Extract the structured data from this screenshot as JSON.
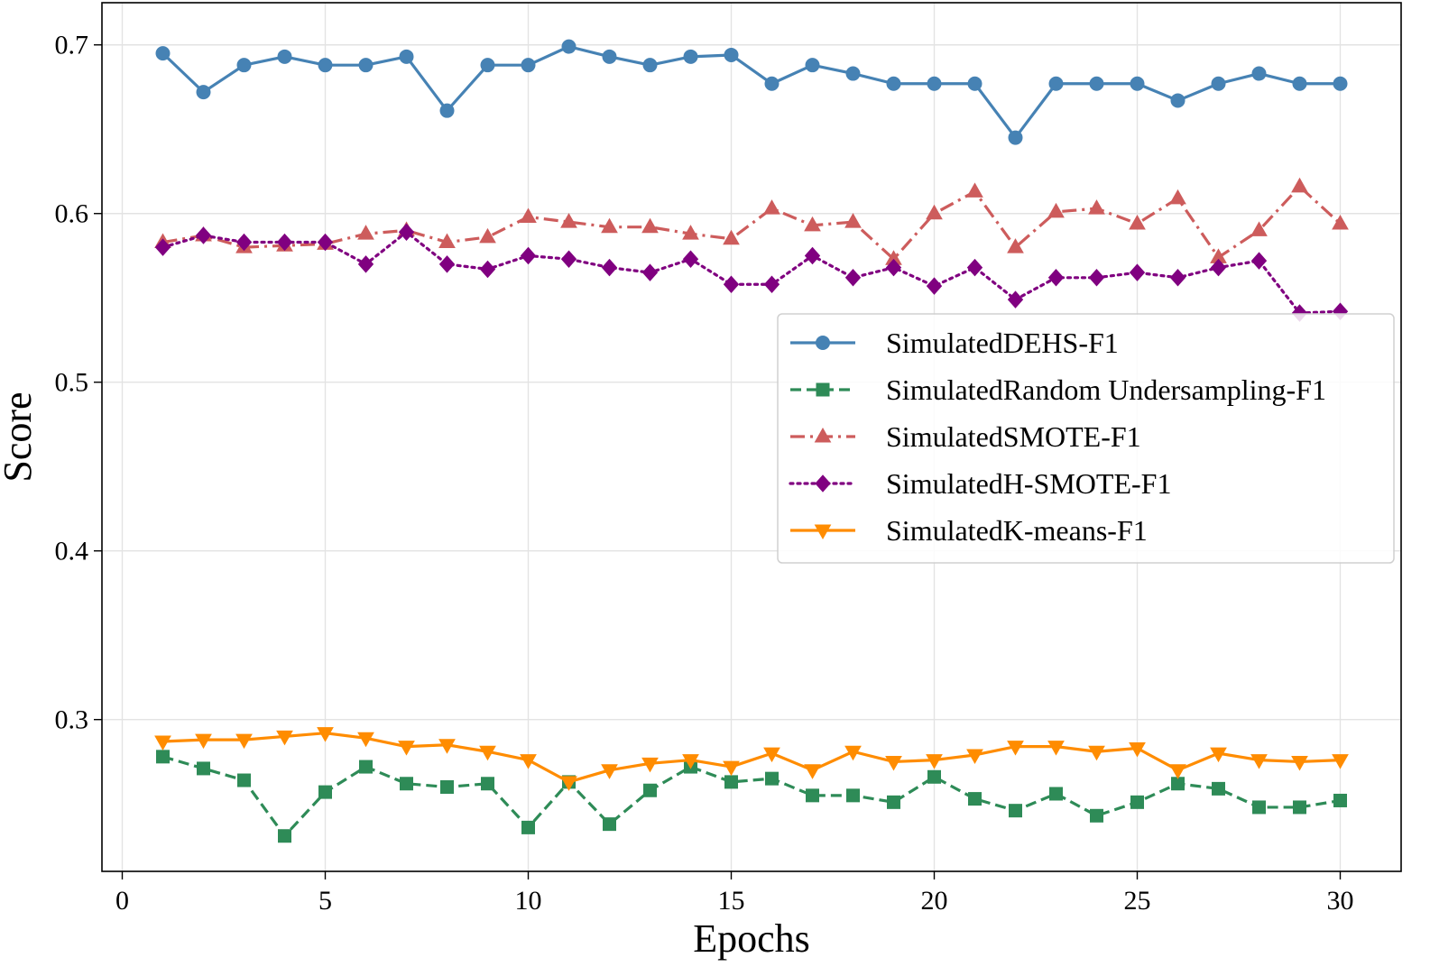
{
  "chart_data": {
    "type": "line",
    "title": "",
    "xlabel": "Epochs",
    "ylabel": "Score",
    "xlim": [
      -0.5,
      31.5
    ],
    "ylim": [
      0.21,
      0.725
    ],
    "xticks": [
      0,
      5,
      10,
      15,
      20,
      25,
      30
    ],
    "yticks": [
      0.3,
      0.4,
      0.5,
      0.6,
      0.7
    ],
    "ytick_labels": [
      "0.3",
      "0.4",
      "0.5",
      "0.6",
      "0.7"
    ],
    "grid": true,
    "legend_position": "center-right",
    "x": [
      1,
      2,
      3,
      4,
      5,
      6,
      7,
      8,
      9,
      10,
      11,
      12,
      13,
      14,
      15,
      16,
      17,
      18,
      19,
      20,
      21,
      22,
      23,
      24,
      25,
      26,
      27,
      28,
      29,
      30
    ],
    "series": [
      {
        "name": "SimulatedDEHS-F1",
        "color": "#4682b4",
        "dash": "solid",
        "marker": "circle",
        "values": [
          0.695,
          0.672,
          0.688,
          0.693,
          0.688,
          0.688,
          0.693,
          0.661,
          0.688,
          0.688,
          0.699,
          0.693,
          0.688,
          0.693,
          0.694,
          0.677,
          0.688,
          0.683,
          0.677,
          0.677,
          0.677,
          0.645,
          0.677,
          0.677,
          0.677,
          0.667,
          0.677,
          0.683,
          0.677,
          0.677
        ]
      },
      {
        "name": "SimulatedRandom Undersampling-F1",
        "color": "#2e8b57",
        "dash": "dashed",
        "marker": "square",
        "values": [
          0.278,
          0.271,
          0.264,
          0.231,
          0.257,
          0.272,
          0.262,
          0.26,
          0.262,
          0.236,
          0.263,
          0.238,
          0.258,
          0.272,
          0.263,
          0.265,
          0.255,
          0.255,
          0.251,
          0.266,
          0.253,
          0.246,
          0.256,
          0.243,
          0.251,
          0.262,
          0.259,
          0.248,
          0.248,
          0.252
        ]
      },
      {
        "name": "SimulatedSMOTE-F1",
        "color": "#cd5c5c",
        "dash": "dashdot",
        "marker": "triangle-up",
        "values": [
          0.583,
          0.587,
          0.58,
          0.581,
          0.582,
          0.588,
          0.59,
          0.583,
          0.586,
          0.598,
          0.595,
          0.592,
          0.592,
          0.588,
          0.585,
          0.603,
          0.593,
          0.595,
          0.573,
          0.6,
          0.613,
          0.58,
          0.601,
          0.603,
          0.594,
          0.609,
          0.574,
          0.59,
          0.616,
          0.594
        ]
      },
      {
        "name": "SimulatedH-SMOTE-F1",
        "color": "#800080",
        "dash": "dotted",
        "marker": "diamond",
        "values": [
          0.58,
          0.587,
          0.583,
          0.583,
          0.583,
          0.57,
          0.589,
          0.57,
          0.567,
          0.575,
          0.573,
          0.568,
          0.565,
          0.573,
          0.558,
          0.558,
          0.575,
          0.562,
          0.568,
          0.557,
          0.568,
          0.549,
          0.562,
          0.562,
          0.565,
          0.562,
          0.568,
          0.572,
          0.541,
          0.542
        ]
      },
      {
        "name": "SimulatedK-means-F1",
        "color": "#ff8c00",
        "dash": "solid",
        "marker": "triangle-down",
        "values": [
          0.287,
          0.288,
          0.288,
          0.29,
          0.292,
          0.289,
          0.284,
          0.285,
          0.281,
          0.276,
          0.263,
          0.27,
          0.274,
          0.276,
          0.272,
          0.28,
          0.27,
          0.281,
          0.275,
          0.276,
          0.279,
          0.284,
          0.284,
          0.281,
          0.283,
          0.27,
          0.28,
          0.276,
          0.275,
          0.276
        ]
      }
    ]
  }
}
